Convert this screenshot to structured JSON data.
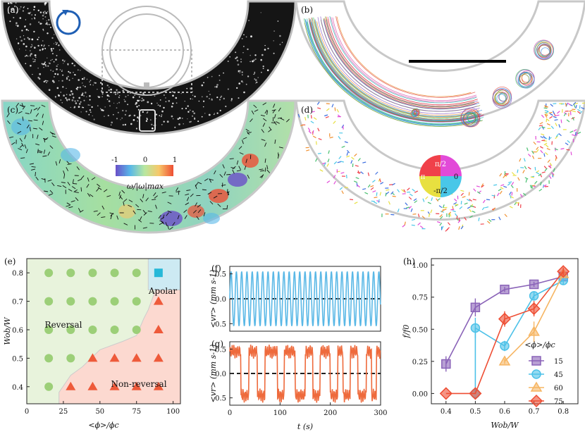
{
  "panels": {
    "a": "(a)",
    "b": "(b)",
    "c": "(c)",
    "d": "(d)",
    "e": "(e)",
    "f": "(f)",
    "g": "(g)",
    "h": "(h)"
  },
  "colorbar_c": {
    "min": "-1",
    "mid": "0",
    "max": "1",
    "label": "ω/|ω|max"
  },
  "colorwheel_d": {
    "top": "π/2",
    "left": "π",
    "right": "0",
    "bottom": "-π/2"
  },
  "colors": {
    "reversal_fill": "#e8f3dc",
    "nonreversal_fill": "#fcd9d0",
    "apolar_fill": "#cdeaf3",
    "circle": "#9ccf78",
    "triangle": "#ee5a3a",
    "square": "#26b8d8",
    "f_line": "#5ab8e6",
    "g_line": "#ee6a3c",
    "s15": "#8a63b8",
    "s45": "#4cc1e8",
    "s60": "#f6b562",
    "s75": "#ee4e34"
  },
  "chart_data": [
    {
      "type": "scatter",
      "panel": "e",
      "xlabel": "<ϕ>/ϕc",
      "ylabel": "Wob/W",
      "xlim": [
        0,
        105
      ],
      "ylim": [
        0.34,
        0.85
      ],
      "xticks": [
        "0",
        "25",
        "50",
        "75",
        "100"
      ],
      "yticks": [
        "0.4",
        "0.5",
        "0.6",
        "0.7",
        "0.8"
      ],
      "region_labels": {
        "reversal": "Reversal",
        "nonreversal": "Non-reversal",
        "apolar": "Apolar"
      },
      "reversal_points": [
        [
          15,
          0.8
        ],
        [
          30,
          0.8
        ],
        [
          45,
          0.8
        ],
        [
          60,
          0.8
        ],
        [
          75,
          0.8
        ],
        [
          15,
          0.7
        ],
        [
          30,
          0.7
        ],
        [
          45,
          0.7
        ],
        [
          60,
          0.7
        ],
        [
          75,
          0.7
        ],
        [
          15,
          0.6
        ],
        [
          30,
          0.6
        ],
        [
          45,
          0.6
        ],
        [
          60,
          0.6
        ],
        [
          75,
          0.6
        ],
        [
          15,
          0.5
        ],
        [
          30,
          0.5
        ],
        [
          15,
          0.4
        ]
      ],
      "nonreversal_points": [
        [
          90,
          0.7
        ],
        [
          90,
          0.6
        ],
        [
          45,
          0.5
        ],
        [
          60,
          0.5
        ],
        [
          75,
          0.5
        ],
        [
          90,
          0.5
        ],
        [
          30,
          0.4
        ],
        [
          45,
          0.4
        ],
        [
          60,
          0.4
        ],
        [
          75,
          0.4
        ],
        [
          90,
          0.4
        ]
      ],
      "apolar_points": [
        [
          90,
          0.8
        ]
      ]
    },
    {
      "type": "line",
      "panel": "f",
      "ylabel": "<vr> (mm s-1)",
      "xlim": [
        0,
        300
      ],
      "ylim": [
        -0.65,
        0.65
      ],
      "yticks": [
        "0.5",
        "0.0",
        "0.5"
      ],
      "signal": "square-ish periodic reversal",
      "period_s": 10.5,
      "amplitude": 0.55
    },
    {
      "type": "line",
      "panel": "g",
      "xlabel": "t (s)",
      "ylabel": "<vr> (mm s-1)",
      "xlim": [
        0,
        300
      ],
      "ylim": [
        -0.65,
        0.65
      ],
      "xticks": [
        "0",
        "100",
        "200",
        "300"
      ],
      "yticks": [
        "0.5",
        "0.0",
        "0.5"
      ],
      "switch_times_s": [
        0,
        22,
        38,
        55,
        70,
        95,
        108,
        130,
        150,
        165,
        180,
        200,
        215,
        225,
        240,
        255,
        272,
        282,
        292
      ]
    },
    {
      "type": "line",
      "panel": "h",
      "xlabel": "Wob/W",
      "ylabel": "f/f0",
      "xlim": [
        0.35,
        0.85
      ],
      "ylim": [
        -0.08,
        1.05
      ],
      "xticks": [
        "0.4",
        "0.5",
        "0.6",
        "0.7",
        "0.8"
      ],
      "yticks": [
        "0.00",
        "0.25",
        "0.50",
        "0.75",
        "1.00"
      ],
      "legend_title": "<ϕ>/ϕc",
      "series": [
        {
          "name": "15",
          "x": [
            0.4,
            0.5,
            0.6,
            0.7,
            0.8
          ],
          "values": [
            0.23,
            0.67,
            0.81,
            0.85,
            0.91
          ],
          "err": [
            0.06,
            0.07,
            0.02,
            0.02,
            0.02
          ]
        },
        {
          "name": "45",
          "x": [
            0.5,
            0.5,
            0.6,
            0.7,
            0.8
          ],
          "values": [
            0.0,
            0.51,
            0.37,
            0.76,
            0.88
          ],
          "err": [
            0.0,
            0.08,
            0.04,
            0.03,
            0.03
          ]
        },
        {
          "name": "60",
          "x": [
            0.6,
            0.7,
            0.8
          ],
          "values": [
            0.25,
            0.48,
            0.93
          ],
          "err": [
            0.02,
            0.08,
            0.03
          ]
        },
        {
          "name": "75",
          "x": [
            0.4,
            0.5,
            0.6,
            0.7,
            0.8
          ],
          "values": [
            0.0,
            0.0,
            0.58,
            0.66,
            0.95
          ],
          "err": [
            0.0,
            0.0,
            0.06,
            0.06,
            0.03
          ]
        }
      ]
    }
  ]
}
